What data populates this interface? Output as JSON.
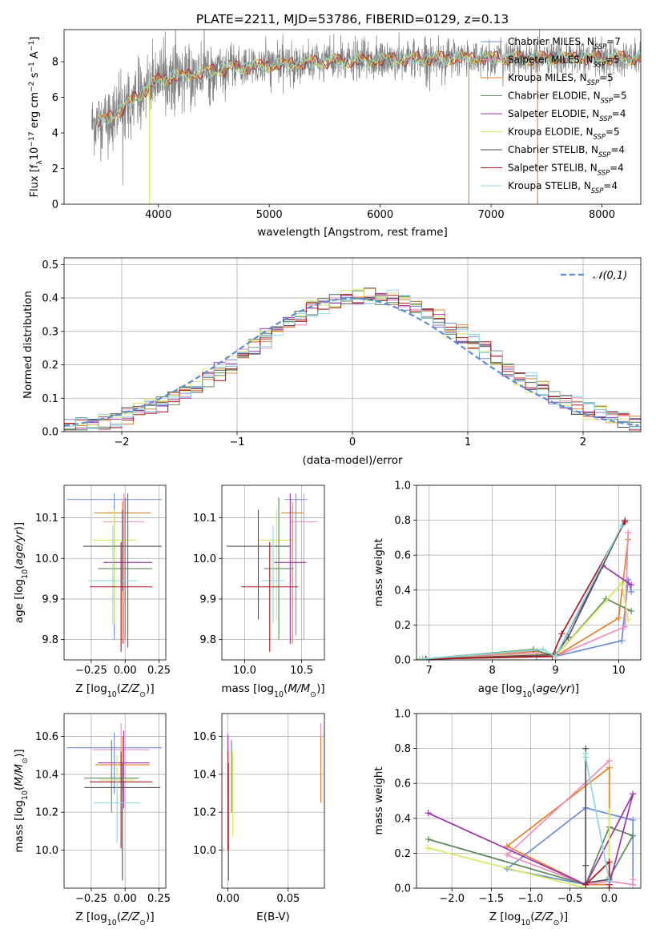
{
  "figure_title": "PLATE=2211, MJD=53786, FIBERID=0129, z=0.13",
  "colors": {
    "chabrier_miles": "#6b8ed6",
    "salpeter_miles": "#f08bc0",
    "kroupa_miles": "#e0822a",
    "chabrier_elodie": "#5a8a5a",
    "salpeter_elodie": "#a030b0",
    "kroupa_elodie": "#d8e860",
    "chabrier_stelib": "#555555",
    "salpeter_stelib": "#b01a1a",
    "kroupa_stelib": "#88d8e0",
    "normal_curve": "#5b8bd8",
    "spectrum_grey": "#808080"
  },
  "chart_data": [
    {
      "id": "spectrum",
      "type": "line",
      "title": "PLATE=2211, MJD=53786, FIBERID=0129, z=0.13",
      "xlabel": "wavelength [Angstrom, rest frame]",
      "ylabel": "Flux [f_λ 10^-17 erg cm^-2 s^-1 A^-1]",
      "xlim": [
        3150,
        8350
      ],
      "ylim": [
        0,
        9.8
      ],
      "xticks": [
        4000,
        5000,
        6000,
        7000,
        8000
      ],
      "yticks": [
        0,
        2,
        4,
        6,
        8
      ],
      "grid": false,
      "legend_position": "top-right",
      "legend": [
        {
          "key": "chabrier_miles",
          "label": "Chabrier MILES, N_SSP=7"
        },
        {
          "key": "salpeter_miles",
          "label": "Salpeter MILES, N_SSP=5"
        },
        {
          "key": "kroupa_miles",
          "label": "Kroupa MILES, N_SSP=5"
        },
        {
          "key": "chabrier_elodie",
          "label": "Chabrier ELODIE, N_SSP=5"
        },
        {
          "key": "salpeter_elodie",
          "label": "Salpeter ELODIE, N_SSP=4"
        },
        {
          "key": "kroupa_elodie",
          "label": "Kroupa ELODIE, N_SSP=5"
        },
        {
          "key": "chabrier_stelib",
          "label": "Chabrier STELIB, N_SSP=4"
        },
        {
          "key": "salpeter_stelib",
          "label": "Salpeter STELIB, N_SSP=4"
        },
        {
          "key": "kroupa_stelib",
          "label": "Kroupa STELIB, N_SSP=4"
        }
      ],
      "observed_range": [
        3400,
        8350
      ],
      "continuum_x": [
        3400,
        3600,
        3800,
        4000,
        4300,
        4600,
        5000,
        5500,
        6000,
        6500,
        7000,
        7500,
        8000,
        8350
      ],
      "continuum_y": [
        4.5,
        5.0,
        6.0,
        7.0,
        7.3,
        7.6,
        7.8,
        8.0,
        8.1,
        8.2,
        8.2,
        8.2,
        8.2,
        8.2
      ],
      "model_cutoffs": [
        {
          "key": "kroupa_elodie",
          "x": 3920
        },
        {
          "key": "kroupa_miles",
          "x": 6800
        },
        {
          "key": "kroupa_miles",
          "x": 7420
        }
      ]
    },
    {
      "id": "residuals",
      "type": "histogram",
      "xlabel": "(data-model)/error",
      "ylabel": "Normed distribution",
      "xlim": [
        -2.5,
        2.5
      ],
      "ylim": [
        0,
        0.52
      ],
      "xticks": [
        -2,
        -1,
        0,
        1,
        2
      ],
      "yticks": [
        0.0,
        0.1,
        0.2,
        0.3,
        0.4,
        0.5
      ],
      "grid": true,
      "legend_position": "top-right",
      "legend": [
        {
          "key": "normal_curve",
          "label": "𝒩(0,1)",
          "style": "dashed"
        }
      ],
      "bin_width": 0.1,
      "bin_start": -2.5,
      "histogram_keys": [
        "chabrier_miles",
        "salpeter_miles",
        "kroupa_miles",
        "chabrier_elodie",
        "salpeter_elodie",
        "kroupa_elodie",
        "chabrier_stelib",
        "salpeter_stelib",
        "kroupa_stelib"
      ]
    },
    {
      "id": "age_vs_Z",
      "type": "errorbar",
      "xlabel": "Z [log10(Z/Z⊙)]",
      "ylabel": "age [log10(age/yr)]",
      "xlim": [
        -0.45,
        0.3
      ],
      "ylim": [
        9.75,
        10.18
      ],
      "xticks": [
        -0.25,
        0.0,
        0.25
      ],
      "xtick_labels": [
        "−0.25",
        "0.00",
        "0.25"
      ],
      "yticks": [
        9.8,
        9.9,
        10.0,
        10.1
      ],
      "ytick_labels": [
        "9.8",
        "9.9",
        "10.0",
        "10.1"
      ],
      "grid": true,
      "points": [
        {
          "key": "chabrier_miles",
          "x": -0.08,
          "xerr": 0.35,
          "y": 10.145,
          "ylo": 9.8,
          "yhi": 10.16
        },
        {
          "key": "kroupa_miles",
          "x": -0.02,
          "xerr": 0.21,
          "y": 10.112,
          "ylo": 9.79,
          "yhi": 10.14
        },
        {
          "key": "salpeter_miles",
          "x": -0.01,
          "xerr": 0.15,
          "y": 10.09,
          "ylo": 9.79,
          "yhi": 10.16
        },
        {
          "key": "kroupa_elodie",
          "x": -0.08,
          "xerr": 0.16,
          "y": 10.045,
          "ylo": 9.84,
          "yhi": 10.12
        },
        {
          "key": "chabrier_stelib",
          "x": -0.02,
          "xerr": 0.29,
          "y": 10.03,
          "ylo": 9.92,
          "yhi": 10.12
        },
        {
          "key": "salpeter_elodie",
          "x": 0.02,
          "xerr": 0.18,
          "y": 9.99,
          "ylo": 9.78,
          "yhi": 10.16
        },
        {
          "key": "chabrier_elodie",
          "x": 0.0,
          "xerr": 0.2,
          "y": 9.975,
          "ylo": 9.8,
          "yhi": 10.15
        },
        {
          "key": "kroupa_stelib",
          "x": -0.09,
          "xerr": 0.18,
          "y": 9.945,
          "ylo": 9.84,
          "yhi": 10.08
        },
        {
          "key": "salpeter_stelib",
          "x": -0.03,
          "xerr": 0.23,
          "y": 9.93,
          "ylo": 9.77,
          "yhi": 10.04
        }
      ]
    },
    {
      "id": "age_vs_mass",
      "type": "errorbar",
      "xlabel": "mass [log10(M/M⊙)]",
      "ylabel": "",
      "xlim": [
        9.8,
        10.7
      ],
      "ylim": [
        9.75,
        10.18
      ],
      "xticks": [
        10.0,
        10.5
      ],
      "xtick_labels": [
        "10.0",
        "10.5"
      ],
      "yticks": [
        9.8,
        9.9,
        10.0,
        10.1
      ],
      "ytick_labels": [
        "9.8",
        "9.9",
        "10.0",
        "10.1"
      ],
      "grid": true,
      "points": [
        {
          "key": "chabrier_miles",
          "x": 10.45,
          "xerr": 0.1,
          "y": 10.145,
          "ylo": 9.81,
          "yhi": 10.16
        },
        {
          "key": "kroupa_miles",
          "x": 10.42,
          "xerr": 0.1,
          "y": 10.112,
          "ylo": 9.79,
          "yhi": 10.14
        },
        {
          "key": "salpeter_miles",
          "x": 10.52,
          "xerr": 0.12,
          "y": 10.09,
          "ylo": 9.8,
          "yhi": 10.16
        },
        {
          "key": "kroupa_elodie",
          "x": 10.28,
          "xerr": 0.15,
          "y": 10.045,
          "ylo": 9.85,
          "yhi": 10.12
        },
        {
          "key": "chabrier_stelib",
          "x": 10.12,
          "xerr": 0.28,
          "y": 10.03,
          "ylo": 9.85,
          "yhi": 10.12
        },
        {
          "key": "salpeter_elodie",
          "x": 10.4,
          "xerr": 0.14,
          "y": 9.99,
          "ylo": 9.79,
          "yhi": 10.16
        },
        {
          "key": "chabrier_elodie",
          "x": 10.3,
          "xerr": 0.13,
          "y": 9.975,
          "ylo": 9.8,
          "yhi": 10.15
        },
        {
          "key": "kroupa_stelib",
          "x": 10.25,
          "xerr": 0.1,
          "y": 9.945,
          "ylo": 9.84,
          "yhi": 10.08
        },
        {
          "key": "salpeter_stelib",
          "x": 10.22,
          "xerr": 0.25,
          "y": 9.93,
          "ylo": 9.77,
          "yhi": 10.04
        }
      ]
    },
    {
      "id": "weight_vs_age",
      "type": "line",
      "xlabel": "age [log10(age/yr)]",
      "ylabel": "mass weight",
      "xlim": [
        6.8,
        10.35
      ],
      "ylim": [
        0,
        1.0
      ],
      "xticks": [
        7,
        8,
        9,
        10
      ],
      "yticks": [
        0.0,
        0.2,
        0.4,
        0.6,
        0.8,
        1.0
      ],
      "grid": true,
      "series": [
        {
          "key": "chabrier_miles",
          "x": [
            6.85,
            8.7,
            9.0,
            10.05,
            10.15,
            10.2
          ],
          "y": [
            0.005,
            0.02,
            0.02,
            0.11,
            0.46,
            0.39
          ]
        },
        {
          "key": "kroupa_miles",
          "x": [
            6.9,
            8.7,
            9.0,
            10.0,
            10.15
          ],
          "y": [
            0.005,
            0.05,
            0.02,
            0.24,
            0.69
          ]
        },
        {
          "key": "salpeter_miles",
          "x": [
            6.95,
            8.7,
            9.0,
            10.1,
            10.15
          ],
          "y": [
            0.005,
            0.04,
            0.02,
            0.19,
            0.73
          ]
        },
        {
          "key": "chabrier_elodie",
          "x": [
            6.9,
            8.65,
            9.0,
            9.8,
            10.2
          ],
          "y": [
            0.005,
            0.06,
            0.02,
            0.35,
            0.28
          ]
        },
        {
          "key": "salpeter_elodie",
          "x": [
            6.95,
            9.0,
            9.75,
            10.2
          ],
          "y": [
            0.005,
            0.02,
            0.54,
            0.43
          ]
        },
        {
          "key": "kroupa_elodie",
          "x": [
            6.85,
            8.75,
            9.0,
            10.05,
            10.15
          ],
          "y": [
            0.005,
            0.03,
            0.02,
            0.44,
            0.23
          ]
        },
        {
          "key": "chabrier_stelib",
          "x": [
            6.9,
            9.0,
            9.2,
            10.1
          ],
          "y": [
            0.005,
            0.03,
            0.13,
            0.8
          ]
        },
        {
          "key": "salpeter_stelib",
          "x": [
            6.95,
            8.95,
            9.1,
            10.1
          ],
          "y": [
            0.005,
            0.02,
            0.15,
            0.79
          ]
        },
        {
          "key": "kroupa_stelib",
          "x": [
            6.9,
            8.8,
            9.0,
            10.05
          ],
          "y": [
            0.005,
            0.06,
            0.02,
            0.77
          ]
        }
      ]
    },
    {
      "id": "mass_vs_Z",
      "type": "errorbar",
      "xlabel": "Z [log10(Z/Z⊙)]",
      "ylabel": "mass [log10(M/M⊙)]",
      "xlim": [
        -0.45,
        0.3
      ],
      "ylim": [
        9.8,
        10.72
      ],
      "xticks": [
        -0.25,
        0.0,
        0.25
      ],
      "xtick_labels": [
        "−0.25",
        "0.00",
        "0.25"
      ],
      "yticks": [
        10.0,
        10.2,
        10.4,
        10.6
      ],
      "ytick_labels": [
        "10.0",
        "10.2",
        "10.4",
        "10.6"
      ],
      "grid": true,
      "points": [
        {
          "key": "chabrier_miles",
          "x": -0.08,
          "xerr": 0.35,
          "y": 10.54,
          "ylo": 10.3,
          "yhi": 10.62
        },
        {
          "key": "salpeter_miles",
          "x": -0.03,
          "xerr": 0.21,
          "y": 10.53,
          "ylo": 10.33,
          "yhi": 10.67
        },
        {
          "key": "salpeter_elodie",
          "x": -0.01,
          "xerr": 0.19,
          "y": 10.46,
          "ylo": 10.22,
          "yhi": 10.63
        },
        {
          "key": "kroupa_miles",
          "x": -0.02,
          "xerr": 0.2,
          "y": 10.45,
          "ylo": 10.3,
          "yhi": 10.6
        },
        {
          "key": "chabrier_elodie",
          "x": -0.1,
          "xerr": 0.2,
          "y": 10.38,
          "ylo": 10.2,
          "yhi": 10.58
        },
        {
          "key": "kroupa_elodie",
          "x": -0.06,
          "xerr": 0.13,
          "y": 10.37,
          "ylo": 10.07,
          "yhi": 10.5
        },
        {
          "key": "salpeter_stelib",
          "x": -0.03,
          "xerr": 0.23,
          "y": 10.36,
          "ylo": 10.01,
          "yhi": 10.52
        },
        {
          "key": "chabrier_stelib",
          "x": -0.02,
          "xerr": 0.28,
          "y": 10.33,
          "ylo": 9.84,
          "yhi": 10.46
        },
        {
          "key": "kroupa_stelib",
          "x": -0.06,
          "xerr": 0.17,
          "y": 10.25,
          "ylo": 10.04,
          "yhi": 10.38
        }
      ]
    },
    {
      "id": "mass_vs_ebv",
      "type": "errorbar",
      "xlabel": "E(B-V)",
      "ylabel": "",
      "xlim": [
        -0.005,
        0.08
      ],
      "ylim": [
        9.8,
        10.72
      ],
      "xticks": [
        0.0,
        0.05
      ],
      "xtick_labels": [
        "0.00",
        "0.05"
      ],
      "yticks": [
        10.0,
        10.2,
        10.4,
        10.6
      ],
      "ytick_labels": [
        "10.0",
        "10.2",
        "10.4",
        "10.6"
      ],
      "grid": true,
      "points": [
        {
          "key": "salpeter_elodie",
          "x": 0.0,
          "xerr": 0,
          "y": 10.46,
          "ylo": 10.3,
          "yhi": 10.61
        },
        {
          "key": "chabrier_stelib",
          "x": 0.0005,
          "xerr": 0,
          "y": 10.33,
          "ylo": 9.84,
          "yhi": 10.46
        },
        {
          "key": "salpeter_stelib",
          "x": 0.0,
          "xerr": 0,
          "y": 10.2,
          "ylo": 10.0,
          "yhi": 10.52
        },
        {
          "key": "kroupa_elodie",
          "x": 0.004,
          "xerr": 0,
          "y": 10.3,
          "ylo": 10.07,
          "yhi": 10.52
        },
        {
          "key": "chabrier_elodie",
          "x": 0.003,
          "xerr": 0,
          "y": 10.4,
          "ylo": 10.2,
          "yhi": 10.58
        },
        {
          "key": "salpeter_miles",
          "x": 0.077,
          "xerr": 0,
          "y": 10.5,
          "ylo": 10.28,
          "yhi": 10.67
        },
        {
          "key": "kroupa_miles",
          "x": 0.077,
          "xerr": 0,
          "y": 10.45,
          "ylo": 10.25,
          "yhi": 10.6
        }
      ]
    },
    {
      "id": "weight_vs_Z",
      "type": "line",
      "xlabel": "Z [log10(Z/Z⊙)]",
      "ylabel": "mass weight",
      "xlim": [
        -2.45,
        0.4
      ],
      "ylim": [
        0,
        1.0
      ],
      "xticks": [
        -2.0,
        -1.5,
        -1.0,
        -0.5,
        0.0
      ],
      "xtick_labels": [
        "−2.0",
        "−1.5",
        "−1.0",
        "−0.5",
        "0.0"
      ],
      "yticks": [
        0.0,
        0.2,
        0.4,
        0.6,
        0.8,
        1.0
      ],
      "grid": true,
      "series": [
        {
          "key": "chabrier_miles",
          "x": [
            0.3,
            0.3,
            -0.3,
            -1.3,
            -0.3
          ],
          "y": [
            0.02,
            0.39,
            0.46,
            0.11,
            0.02
          ]
        },
        {
          "key": "kroupa_miles",
          "x": [
            0.0,
            -0.3,
            -1.3,
            0.0,
            0.0
          ],
          "y": [
            0.02,
            0.02,
            0.24,
            0.69,
            0.0
          ]
        },
        {
          "key": "salpeter_miles",
          "x": [
            0.0,
            -1.3,
            -0.3,
            0.0,
            0.3,
            0.3
          ],
          "y": [
            0.73,
            0.19,
            0.02,
            0.04,
            0.02,
            0.05
          ]
        },
        {
          "key": "chabrier_elodie",
          "x": [
            -2.3,
            -0.3,
            0.0,
            0.3,
            0.0
          ],
          "y": [
            0.28,
            0.02,
            0.35,
            0.3,
            0.06
          ]
        },
        {
          "key": "salpeter_elodie",
          "x": [
            -2.3,
            -0.3,
            0.3,
            0.0
          ],
          "y": [
            0.43,
            0.02,
            0.54,
            0.02
          ]
        },
        {
          "key": "kroupa_elodie",
          "x": [
            -2.3,
            -0.3,
            0.0,
            0.0
          ],
          "y": [
            0.23,
            0.0,
            0.0,
            0.44
          ]
        },
        {
          "key": "chabrier_stelib",
          "x": [
            -0.3,
            -0.3,
            -0.3,
            0.0
          ],
          "y": [
            0.8,
            0.13,
            0.03,
            0.05
          ]
        },
        {
          "key": "salpeter_stelib",
          "x": [
            -0.3,
            0.0,
            0.0
          ],
          "y": [
            0.02,
            0.15,
            0.0
          ]
        },
        {
          "key": "kroupa_stelib",
          "x": [
            -0.3,
            -0.3,
            0.0
          ],
          "y": [
            0.77,
            0.75,
            0.04
          ]
        }
      ]
    }
  ]
}
